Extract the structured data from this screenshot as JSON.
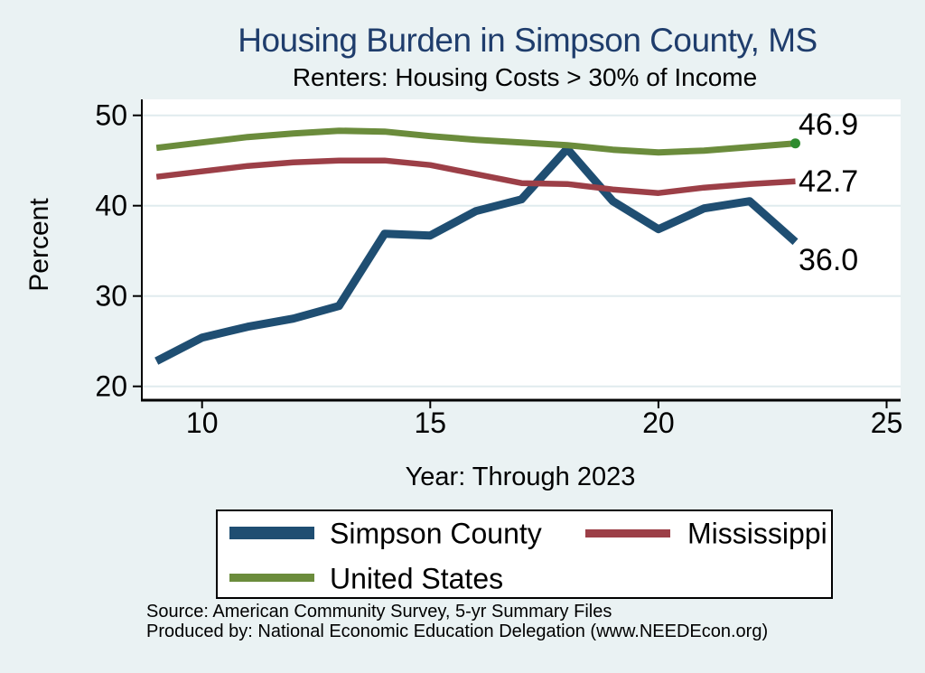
{
  "header": {
    "title": "Housing Burden in Simpson County, MS",
    "subtitle": "Renters: Housing Costs > 30% of Income",
    "title_color": "#1f3d6c"
  },
  "chart_data": {
    "type": "line",
    "title": "Housing Burden in Simpson County, MS",
    "subtitle": "Renters: Housing Costs > 30% of Income",
    "x_label": "Year: Through 2023",
    "y_label": "Percent",
    "x_ticks": [
      10,
      15,
      20,
      25
    ],
    "y_ticks": [
      20,
      30,
      40,
      50
    ],
    "xlim": [
      8.7,
      25.3
    ],
    "ylim": [
      18.5,
      51.8
    ],
    "grid": true,
    "legend_position": "bottom",
    "years": [
      2009,
      2010,
      2011,
      2012,
      2013,
      2014,
      2015,
      2016,
      2017,
      2018,
      2019,
      2020,
      2021,
      2022,
      2023
    ],
    "x": [
      9,
      10,
      11,
      12,
      13,
      14,
      15,
      16,
      17,
      18,
      19,
      20,
      21,
      22,
      23
    ],
    "series": [
      {
        "name": "Simpson County",
        "color": "#1f4e72",
        "line_width": 9,
        "end_label": "36.0",
        "end_marker": false,
        "values": [
          22.8,
          25.4,
          26.6,
          27.5,
          28.9,
          36.9,
          36.7,
          39.4,
          40.7,
          46.3,
          40.5,
          37.4,
          39.7,
          40.5,
          36.0
        ]
      },
      {
        "name": "Mississippi",
        "color": "#9c3f47",
        "line_width": 6.5,
        "end_label": "42.7",
        "end_marker": false,
        "values": [
          43.2,
          43.8,
          44.4,
          44.8,
          45.0,
          45.0,
          44.5,
          43.5,
          42.5,
          42.4,
          41.8,
          41.4,
          42.0,
          42.4,
          42.7
        ]
      },
      {
        "name": "United States",
        "color": "#6b8c3c",
        "line_width": 7,
        "end_label": "46.9",
        "end_marker": true,
        "end_marker_color": "#2e8b2e",
        "values": [
          46.4,
          47.0,
          47.6,
          48.0,
          48.3,
          48.2,
          47.7,
          47.3,
          47.0,
          46.7,
          46.2,
          45.9,
          46.1,
          46.5,
          46.9
        ]
      }
    ],
    "colors": {
      "page_background": "#eaf2f3",
      "plot_background": "#ffffff",
      "gridline": "#e0ebee",
      "axis": "#000000"
    }
  },
  "footer": {
    "source": "Source: American Community Survey, 5-yr Summary Files",
    "produced_by": "Produced by: National Economic Education Delegation (www.NEEDEcon.org)"
  }
}
